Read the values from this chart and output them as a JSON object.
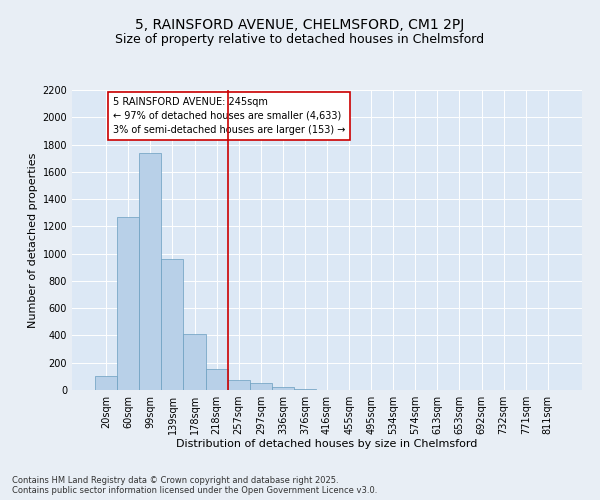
{
  "title_line1": "5, RAINSFORD AVENUE, CHELMSFORD, CM1 2PJ",
  "title_line2": "Size of property relative to detached houses in Chelmsford",
  "xlabel": "Distribution of detached houses by size in Chelmsford",
  "ylabel": "Number of detached properties",
  "categories": [
    "20sqm",
    "60sqm",
    "99sqm",
    "139sqm",
    "178sqm",
    "218sqm",
    "257sqm",
    "297sqm",
    "336sqm",
    "376sqm",
    "416sqm",
    "455sqm",
    "495sqm",
    "534sqm",
    "574sqm",
    "613sqm",
    "653sqm",
    "692sqm",
    "732sqm",
    "771sqm",
    "811sqm"
  ],
  "values": [
    100,
    1270,
    1740,
    960,
    410,
    155,
    75,
    50,
    25,
    10,
    0,
    0,
    0,
    0,
    0,
    0,
    0,
    0,
    0,
    0,
    0
  ],
  "bar_color": "#b8d0e8",
  "bar_edge_color": "#6a9ec0",
  "vline_color": "#cc0000",
  "vline_pos": 5.5,
  "annotation_text": "5 RAINSFORD AVENUE: 245sqm\n← 97% of detached houses are smaller (4,633)\n3% of semi-detached houses are larger (153) →",
  "annotation_box_edge_color": "#cc0000",
  "annotation_box_face_color": "#ffffff",
  "ylim": [
    0,
    2200
  ],
  "yticks": [
    0,
    200,
    400,
    600,
    800,
    1000,
    1200,
    1400,
    1600,
    1800,
    2000,
    2200
  ],
  "background_color": "#e8eef5",
  "plot_background_color": "#dce8f5",
  "footer_line1": "Contains HM Land Registry data © Crown copyright and database right 2025.",
  "footer_line2": "Contains public sector information licensed under the Open Government Licence v3.0.",
  "title_fontsize": 10,
  "subtitle_fontsize": 9,
  "axis_label_fontsize": 8,
  "tick_fontsize": 7,
  "annotation_fontsize": 7,
  "footer_fontsize": 6
}
